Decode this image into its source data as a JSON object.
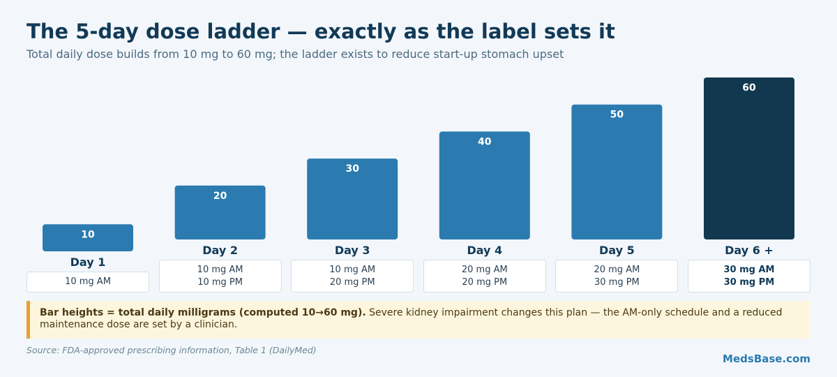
{
  "header": {
    "title": "The 5-day dose ladder — exactly as the label sets it",
    "subtitle": "Total daily dose builds from 10 mg to 60 mg; the ladder exists to reduce start-up stomach upset"
  },
  "chart_data": {
    "type": "bar",
    "categories": [
      "Day 1",
      "Day 2",
      "Day 3",
      "Day 4",
      "Day 5",
      "Day 6 +"
    ],
    "values": [
      10,
      20,
      30,
      40,
      50,
      60
    ],
    "data_labels": [
      "10",
      "20",
      "30",
      "40",
      "50",
      "60"
    ],
    "ylim": [
      0,
      60
    ],
    "grid": false,
    "legend": "none",
    "colors": {
      "bar": "#2b7bb0",
      "final_bar": "#12384f"
    },
    "doses": [
      [
        "10 mg AM"
      ],
      [
        "10 mg AM",
        "10 mg PM"
      ],
      [
        "10 mg AM",
        "20 mg PM"
      ],
      [
        "20 mg AM",
        "20 mg PM"
      ],
      [
        "20 mg AM",
        "30 mg PM"
      ],
      [
        "30 mg AM",
        "30 mg PM"
      ]
    ]
  },
  "note": {
    "bold": "Bar heights = total daily milligrams (computed 10→60 mg).",
    "text": " Severe kidney impairment changes this plan — the AM-only schedule and a reduced maintenance dose are set by a clinician."
  },
  "footer": {
    "source": "Source: FDA-approved prescribing information, Table 1 (DailyMed)",
    "brand": "MedsBase.com"
  }
}
